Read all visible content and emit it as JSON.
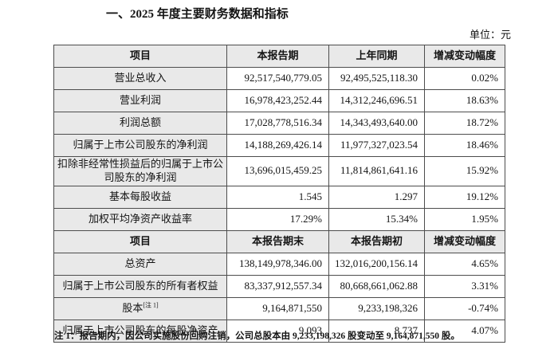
{
  "page": {
    "title": "一、2025 年度主要财务数据和指标",
    "unit_label": "单位：元",
    "footnote": "注 1：报告期内，因公司实施股份回购注销，公司总股本由 9,233,198,326 股变动至 9,164,871,550 股。"
  },
  "colors": {
    "cell_shade": "#e9e9e9",
    "border": "#4d4d4d",
    "text": "#141414",
    "background": "#ffffff"
  },
  "table": {
    "sections": [
      {
        "header": [
          "项目",
          "本报告期",
          "上年同期",
          "增减变动幅度"
        ],
        "rows": [
          {
            "label": "营业总收入",
            "values": [
              "92,517,540,779.05",
              "92,495,525,118.30",
              "0.02%"
            ]
          },
          {
            "label": "营业利润",
            "values": [
              "16,978,423,252.44",
              "14,312,246,696.51",
              "18.63%"
            ]
          },
          {
            "label": "利润总额",
            "values": [
              "17,028,778,516.34",
              "14,343,493,640.00",
              "18.72%"
            ]
          },
          {
            "label": "归属于上市公司股东的净利润",
            "values": [
              "14,188,269,426.14",
              "11,977,327,023.54",
              "18.46%"
            ]
          },
          {
            "label": "扣除非经常性损益后的归属于上市公司股东的净利润",
            "values": [
              "13,696,015,459.25",
              "11,814,861,641.16",
              "15.92%"
            ]
          },
          {
            "label": "基本每股收益",
            "values": [
              "1.545",
              "1.297",
              "19.12%"
            ]
          },
          {
            "label": "加权平均净资产收益率",
            "values": [
              "17.29%",
              "15.34%",
              "1.95%"
            ]
          }
        ]
      },
      {
        "header": [
          "项目",
          "本报告期末",
          "本报告期初",
          "增减变动幅度"
        ],
        "rows": [
          {
            "label": "总资产",
            "values": [
              "138,149,978,346.00",
              "132,016,200,156.14",
              "4.65%"
            ]
          },
          {
            "label": "归属于上市公司股东的所有者权益",
            "values": [
              "83,337,912,557.34",
              "80,668,661,062.88",
              "3.31%"
            ]
          },
          {
            "label": "股本",
            "label_sup": "[注 1]",
            "values": [
              "9,164,871,550",
              "9,233,198,326",
              "-0.74%"
            ]
          },
          {
            "label": "归属于上市公司股东的每股净资产",
            "values": [
              "9.093",
              "8.737",
              "4.07%"
            ]
          }
        ]
      }
    ]
  }
}
